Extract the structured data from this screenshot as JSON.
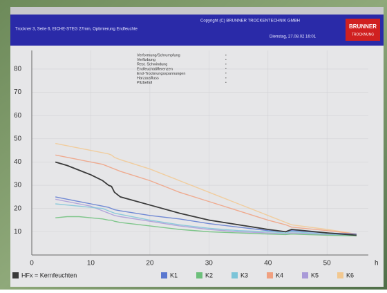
{
  "header": {
    "left": "Trockner 3, Seite 6, EICHE-STEG 27mm, Optimierung Endfeuchte",
    "copyright": "Copyright (C) BRUNNER TROCKENTECHNIK GMBH",
    "date": "Dienstag, 27.08.02 16:01",
    "logo": "BRUNNER",
    "logo_sub": "TROCKNUNG"
  },
  "chart_data": {
    "type": "line",
    "x": [
      4,
      6,
      8,
      10,
      12,
      13,
      13.5,
      14,
      15,
      20,
      25,
      30,
      35,
      40,
      43,
      44,
      50,
      55
    ],
    "xlim": [
      0,
      57
    ],
    "xticks": [
      0,
      10,
      20,
      30,
      40,
      50
    ],
    "xlabel": "h",
    "ylim": [
      0,
      88
    ],
    "yticks": [
      10,
      20,
      30,
      40,
      50,
      60,
      70,
      80
    ],
    "grid": true,
    "annotations": [
      "Verformung/Schrumpfung",
      "Verfärbung",
      "Rest. Schwindung",
      "Endfeuchtdifferenzen",
      "End-Trocknungsspannungen",
      "Harzausfluss",
      "Pilzbefall"
    ],
    "series": [
      {
        "name": "HFx = Kernfeuchten",
        "color": "#3a3a3a",
        "values": [
          40,
          38.5,
          36.5,
          34.5,
          32,
          30,
          29.5,
          27,
          25,
          21.5,
          18,
          15,
          13,
          11,
          10,
          11,
          9.5,
          8.5
        ]
      },
      {
        "name": "K1",
        "color": "#5a78d0",
        "values": [
          25,
          24,
          23,
          22,
          21,
          20.5,
          20,
          19.5,
          19,
          17,
          15.5,
          13.5,
          12,
          10.5,
          10,
          10.5,
          9.5,
          9
        ]
      },
      {
        "name": "K2",
        "color": "#6cbf7a",
        "values": [
          16,
          16.5,
          16.5,
          16,
          15.5,
          15,
          15,
          14.5,
          14,
          12.5,
          11,
          10,
          9.5,
          9,
          8.8,
          9,
          8.5,
          8.2
        ]
      },
      {
        "name": "K3",
        "color": "#7cc4d8",
        "values": [
          22,
          21.5,
          21,
          20.5,
          20,
          19,
          18.5,
          18,
          17.5,
          15,
          13,
          11.5,
          10.5,
          10,
          9.5,
          10,
          9,
          8.5
        ]
      },
      {
        "name": "K4",
        "color": "#f0a080",
        "values": [
          43,
          42,
          41,
          40,
          39,
          38,
          37.5,
          37,
          36,
          32,
          27,
          23,
          19,
          15,
          13,
          12,
          10.5,
          9
        ]
      },
      {
        "name": "K5",
        "color": "#a99ad8",
        "values": [
          24,
          23,
          22,
          21,
          19,
          18,
          17.5,
          17,
          16.5,
          14.5,
          12.5,
          11,
          10,
          9.5,
          9,
          9.5,
          8.8,
          8.5
        ]
      },
      {
        "name": "K6",
        "color": "#f2c890",
        "values": [
          48,
          47,
          46,
          45,
          44,
          43.5,
          43,
          42,
          41,
          37,
          32,
          27,
          22,
          17,
          14,
          13,
          11,
          9
        ]
      }
    ]
  }
}
